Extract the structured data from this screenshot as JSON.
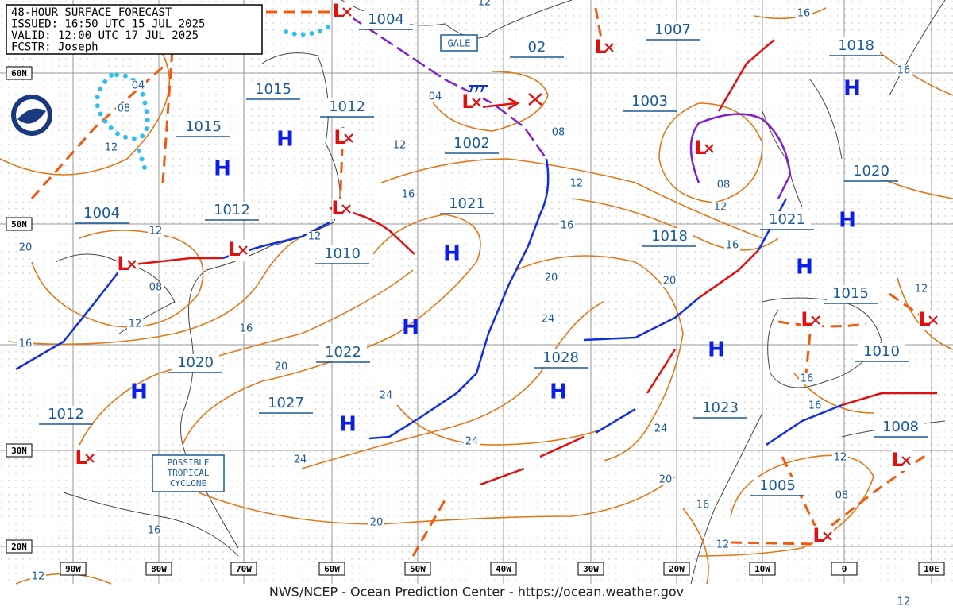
{
  "header": {
    "lines": [
      "48-HOUR SURFACE FORECAST",
      "ISSUED: 16:50 UTC 15 JUL 2025",
      "VALID:  12:00 UTC 17 JUL 2025",
      "FCSTR:  Joseph"
    ]
  },
  "footer": "NWS/NCEP - Ocean Prediction Center - https://ocean.weather.gov",
  "latitude_labels": [
    "60N",
    "50N",
    "30N",
    "20N"
  ],
  "longitude_labels": [
    "90W",
    "80W",
    "70W",
    "60W",
    "50W",
    "40W",
    "30W",
    "20W",
    "10W",
    "0",
    "10E"
  ],
  "boxes": {
    "gale": "GALE",
    "tropical": [
      "POSSIBLE",
      "TROPICAL",
      "CYCLONE"
    ]
  },
  "high_symbol": "H",
  "low_symbol": "L",
  "pressure_labels": [
    "1004",
    "1007",
    "02",
    "1018",
    "1015",
    "1012",
    "1003",
    "1015",
    "1002",
    "1020",
    "1021",
    "1004",
    "1012",
    "1021",
    "1010",
    "1018",
    "1015",
    "1022",
    "1010",
    "1020",
    "1028",
    "1027",
    "1023",
    "1012",
    "1008",
    "1005"
  ],
  "isobar_labels": [
    "12",
    "16",
    "16",
    "04",
    "08",
    "12",
    "12",
    "08",
    "12",
    "16",
    "16",
    "16",
    "12",
    "12",
    "20",
    "08",
    "20",
    "20",
    "12",
    "24",
    "16",
    "16",
    "20",
    "16",
    "12",
    "24",
    "16",
    "24",
    "24",
    "24",
    "12",
    "20",
    "08",
    "16",
    "20",
    "16",
    "12",
    "12",
    "12",
    "04",
    "08",
    "12"
  ]
}
